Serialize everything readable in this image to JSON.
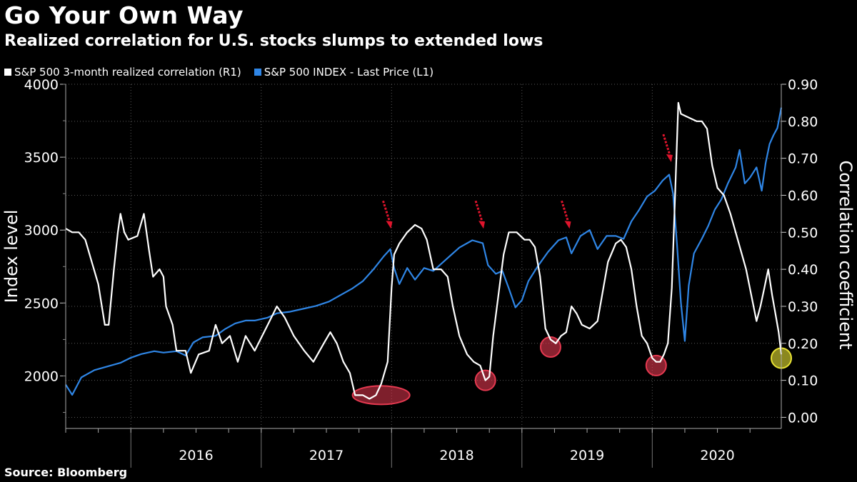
{
  "header": {
    "title": "Go Your Own Way",
    "subtitle": "Realized correlation for U.S. stocks slumps to extended lows",
    "source": "Source: Bloomberg"
  },
  "legend": [
    {
      "label": "S&P 500 3-month realized correlation (R1)",
      "color": "#ffffff"
    },
    {
      "label": "S&P 500 INDEX - Last Price (L1)",
      "color": "#2f86e6"
    }
  ],
  "chart_data": {
    "type": "line",
    "title": "Go Your Own Way",
    "subtitle": "Realized correlation for U.S. stocks slumps to extended lows",
    "ylabel_left": "Index level",
    "ylabel_right": "Correlation coefficient",
    "y_left_range": [
      1640,
      4000
    ],
    "y_left_ticks": [
      "2000",
      "2500",
      "3000",
      "3500",
      "4000"
    ],
    "y_right_range": [
      -0.03,
      0.9
    ],
    "y_right_ticks": [
      "0.00",
      "0.10",
      "0.20",
      "0.30",
      "0.40",
      "0.50",
      "0.60",
      "0.70",
      "0.80",
      "0.90"
    ],
    "x_range": [
      2015.5,
      2020.99
    ],
    "x_tick_labels": [
      "2016",
      "2017",
      "2018",
      "2019",
      "2020"
    ],
    "grid": true,
    "legend_position": "top-left",
    "series": [
      {
        "name": "S&P 500 INDEX - Last Price (L1)",
        "axis": "left",
        "color": "#2f86e6",
        "points": [
          [
            2015.5,
            1940
          ],
          [
            2015.55,
            1870
          ],
          [
            2015.62,
            1990
          ],
          [
            2015.72,
            2040
          ],
          [
            2015.82,
            2065
          ],
          [
            2015.92,
            2090
          ],
          [
            2016.0,
            2125
          ],
          [
            2016.08,
            2150
          ],
          [
            2016.18,
            2170
          ],
          [
            2016.25,
            2160
          ],
          [
            2016.35,
            2170
          ],
          [
            2016.42,
            2140
          ],
          [
            2016.48,
            2230
          ],
          [
            2016.55,
            2265
          ],
          [
            2016.65,
            2275
          ],
          [
            2016.72,
            2320
          ],
          [
            2016.8,
            2360
          ],
          [
            2016.88,
            2380
          ],
          [
            2016.95,
            2380
          ],
          [
            2017.05,
            2400
          ],
          [
            2017.12,
            2430
          ],
          [
            2017.22,
            2440
          ],
          [
            2017.32,
            2460
          ],
          [
            2017.42,
            2480
          ],
          [
            2017.52,
            2510
          ],
          [
            2017.62,
            2560
          ],
          [
            2017.7,
            2600
          ],
          [
            2017.78,
            2650
          ],
          [
            2017.86,
            2730
          ],
          [
            2017.94,
            2820
          ],
          [
            2017.99,
            2870
          ],
          [
            2018.02,
            2740
          ],
          [
            2018.06,
            2630
          ],
          [
            2018.12,
            2740
          ],
          [
            2018.18,
            2660
          ],
          [
            2018.25,
            2740
          ],
          [
            2018.32,
            2720
          ],
          [
            2018.42,
            2800
          ],
          [
            2018.52,
            2880
          ],
          [
            2018.62,
            2930
          ],
          [
            2018.7,
            2910
          ],
          [
            2018.74,
            2760
          ],
          [
            2018.8,
            2700
          ],
          [
            2018.85,
            2720
          ],
          [
            2018.9,
            2600
          ],
          [
            2018.95,
            2470
          ],
          [
            2019.0,
            2520
          ],
          [
            2019.05,
            2650
          ],
          [
            2019.12,
            2750
          ],
          [
            2019.2,
            2850
          ],
          [
            2019.28,
            2930
          ],
          [
            2019.34,
            2950
          ],
          [
            2019.38,
            2840
          ],
          [
            2019.45,
            2960
          ],
          [
            2019.52,
            3000
          ],
          [
            2019.58,
            2870
          ],
          [
            2019.65,
            2960
          ],
          [
            2019.72,
            2960
          ],
          [
            2019.78,
            2940
          ],
          [
            2019.84,
            3060
          ],
          [
            2019.9,
            3140
          ],
          [
            2019.96,
            3230
          ],
          [
            2020.02,
            3270
          ],
          [
            2020.08,
            3340
          ],
          [
            2020.13,
            3380
          ],
          [
            2020.16,
            3250
          ],
          [
            2020.19,
            2900
          ],
          [
            2020.22,
            2500
          ],
          [
            2020.25,
            2240
          ],
          [
            2020.28,
            2620
          ],
          [
            2020.32,
            2840
          ],
          [
            2020.38,
            2940
          ],
          [
            2020.43,
            3030
          ],
          [
            2020.48,
            3140
          ],
          [
            2020.53,
            3210
          ],
          [
            2020.58,
            3320
          ],
          [
            2020.64,
            3430
          ],
          [
            2020.67,
            3550
          ],
          [
            2020.71,
            3320
          ],
          [
            2020.75,
            3360
          ],
          [
            2020.8,
            3430
          ],
          [
            2020.84,
            3270
          ],
          [
            2020.87,
            3460
          ],
          [
            2020.9,
            3590
          ],
          [
            2020.93,
            3650
          ],
          [
            2020.96,
            3700
          ],
          [
            2020.99,
            3840
          ]
        ]
      },
      {
        "name": "S&P 500 3-month realized correlation (R1)",
        "axis": "right",
        "color": "#ffffff",
        "points": [
          [
            2015.5,
            0.51
          ],
          [
            2015.55,
            0.5
          ],
          [
            2015.6,
            0.5
          ],
          [
            2015.65,
            0.48
          ],
          [
            2015.7,
            0.42
          ],
          [
            2015.75,
            0.36
          ],
          [
            2015.8,
            0.25
          ],
          [
            2015.83,
            0.25
          ],
          [
            2015.87,
            0.4
          ],
          [
            2015.9,
            0.5
          ],
          [
            2015.92,
            0.55
          ],
          [
            2015.95,
            0.5
          ],
          [
            2015.98,
            0.48
          ],
          [
            2016.05,
            0.49
          ],
          [
            2016.1,
            0.55
          ],
          [
            2016.14,
            0.45
          ],
          [
            2016.17,
            0.38
          ],
          [
            2016.22,
            0.4
          ],
          [
            2016.25,
            0.38
          ],
          [
            2016.27,
            0.3
          ],
          [
            2016.32,
            0.25
          ],
          [
            2016.35,
            0.18
          ],
          [
            2016.42,
            0.18
          ],
          [
            2016.46,
            0.12
          ],
          [
            2016.52,
            0.17
          ],
          [
            2016.6,
            0.18
          ],
          [
            2016.65,
            0.25
          ],
          [
            2016.7,
            0.2
          ],
          [
            2016.76,
            0.22
          ],
          [
            2016.82,
            0.15
          ],
          [
            2016.88,
            0.22
          ],
          [
            2016.95,
            0.18
          ],
          [
            2017.05,
            0.25
          ],
          [
            2017.12,
            0.3
          ],
          [
            2017.18,
            0.27
          ],
          [
            2017.25,
            0.22
          ],
          [
            2017.33,
            0.18
          ],
          [
            2017.4,
            0.15
          ],
          [
            2017.48,
            0.2
          ],
          [
            2017.53,
            0.23
          ],
          [
            2017.58,
            0.2
          ],
          [
            2017.63,
            0.15
          ],
          [
            2017.68,
            0.12
          ],
          [
            2017.72,
            0.06
          ],
          [
            2017.78,
            0.06
          ],
          [
            2017.83,
            0.05
          ],
          [
            2017.88,
            0.06
          ],
          [
            2017.92,
            0.09
          ],
          [
            2017.97,
            0.15
          ],
          [
            2018.0,
            0.35
          ],
          [
            2018.02,
            0.44
          ],
          [
            2018.06,
            0.47
          ],
          [
            2018.12,
            0.5
          ],
          [
            2018.18,
            0.52
          ],
          [
            2018.23,
            0.51
          ],
          [
            2018.27,
            0.48
          ],
          [
            2018.32,
            0.4
          ],
          [
            2018.38,
            0.4
          ],
          [
            2018.43,
            0.38
          ],
          [
            2018.47,
            0.3
          ],
          [
            2018.52,
            0.22
          ],
          [
            2018.58,
            0.17
          ],
          [
            2018.63,
            0.15
          ],
          [
            2018.68,
            0.14
          ],
          [
            2018.72,
            0.1
          ],
          [
            2018.75,
            0.11
          ],
          [
            2018.78,
            0.22
          ],
          [
            2018.82,
            0.33
          ],
          [
            2018.86,
            0.44
          ],
          [
            2018.9,
            0.5
          ],
          [
            2018.96,
            0.5
          ],
          [
            2019.02,
            0.48
          ],
          [
            2019.06,
            0.48
          ],
          [
            2019.1,
            0.46
          ],
          [
            2019.14,
            0.38
          ],
          [
            2019.18,
            0.24
          ],
          [
            2019.22,
            0.21
          ],
          [
            2019.26,
            0.2
          ],
          [
            2019.3,
            0.22
          ],
          [
            2019.34,
            0.23
          ],
          [
            2019.38,
            0.3
          ],
          [
            2019.42,
            0.28
          ],
          [
            2019.46,
            0.25
          ],
          [
            2019.52,
            0.24
          ],
          [
            2019.58,
            0.26
          ],
          [
            2019.62,
            0.34
          ],
          [
            2019.66,
            0.42
          ],
          [
            2019.72,
            0.47
          ],
          [
            2019.76,
            0.48
          ],
          [
            2019.8,
            0.46
          ],
          [
            2019.84,
            0.4
          ],
          [
            2019.88,
            0.3
          ],
          [
            2019.92,
            0.22
          ],
          [
            2019.96,
            0.2
          ],
          [
            2020.0,
            0.16
          ],
          [
            2020.03,
            0.15
          ],
          [
            2020.06,
            0.15
          ],
          [
            2020.09,
            0.17
          ],
          [
            2020.12,
            0.2
          ],
          [
            2020.15,
            0.35
          ],
          [
            2020.18,
            0.65
          ],
          [
            2020.2,
            0.85
          ],
          [
            2020.22,
            0.82
          ],
          [
            2020.28,
            0.81
          ],
          [
            2020.34,
            0.8
          ],
          [
            2020.38,
            0.8
          ],
          [
            2020.42,
            0.78
          ],
          [
            2020.46,
            0.68
          ],
          [
            2020.5,
            0.62
          ],
          [
            2020.55,
            0.6
          ],
          [
            2020.6,
            0.55
          ],
          [
            2020.64,
            0.5
          ],
          [
            2020.68,
            0.45
          ],
          [
            2020.72,
            0.4
          ],
          [
            2020.76,
            0.33
          ],
          [
            2020.8,
            0.26
          ],
          [
            2020.83,
            0.3
          ],
          [
            2020.86,
            0.35
          ],
          [
            2020.89,
            0.4
          ],
          [
            2020.92,
            0.33
          ],
          [
            2020.95,
            0.27
          ],
          [
            2020.97,
            0.23
          ],
          [
            2020.99,
            0.17
          ]
        ]
      }
    ],
    "annotations": [
      {
        "type": "ellipse-highlight",
        "color": "#e53950",
        "x": 2017.92,
        "y": 0.06,
        "axis": "right"
      },
      {
        "type": "circle-highlight",
        "color": "#e53950",
        "x": 2018.72,
        "y": 0.1,
        "axis": "right"
      },
      {
        "type": "circle-highlight",
        "color": "#e53950",
        "x": 2019.22,
        "y": 0.19,
        "axis": "right"
      },
      {
        "type": "circle-highlight",
        "color": "#e53950",
        "x": 2020.03,
        "y": 0.14,
        "axis": "right"
      },
      {
        "type": "circle-highlight",
        "color": "#e8e233",
        "x": 2020.99,
        "y": 0.16,
        "axis": "right"
      },
      {
        "type": "arrow-down",
        "color": "#e0142c",
        "x": 2017.99,
        "y": 0.5,
        "axis": "right"
      },
      {
        "type": "arrow-down",
        "color": "#e0142c",
        "x": 2018.7,
        "y": 0.5,
        "axis": "right"
      },
      {
        "type": "arrow-down",
        "color": "#e0142c",
        "x": 2019.36,
        "y": 0.5,
        "axis": "right"
      },
      {
        "type": "arrow-down",
        "color": "#e0142c",
        "x": 2020.14,
        "y": 0.68,
        "axis": "right"
      }
    ]
  }
}
